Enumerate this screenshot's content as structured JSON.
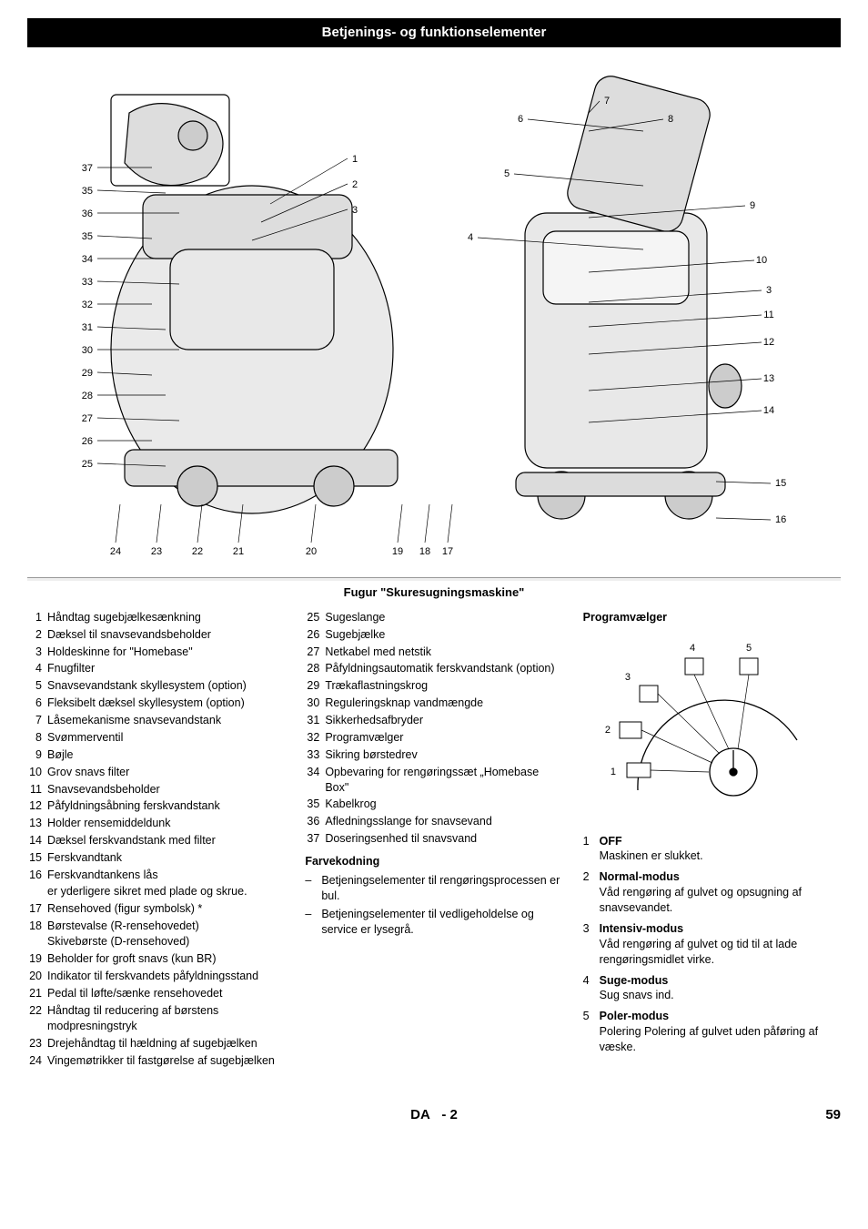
{
  "title_bar": "Betjenings- og funktionselementer",
  "sub_heading": "Fugur \"Skuresugningsmaskine\"",
  "diagram": {
    "left_labels_left": [
      "37",
      "35",
      "36",
      "35",
      "34",
      "33",
      "32",
      "31",
      "30",
      "29",
      "28",
      "27",
      "26",
      "25"
    ],
    "left_labels_top": [
      "1",
      "2",
      "3"
    ],
    "bottom_labels": [
      "24",
      "23",
      "22",
      "21",
      "20",
      "19",
      "18",
      "17"
    ],
    "right_labels_top": [
      "7",
      "6",
      "8",
      "5",
      "9",
      "4",
      "10",
      "3",
      "11",
      "12",
      "13",
      "14"
    ],
    "right_labels_side": [
      "15",
      "16"
    ]
  },
  "col1": [
    {
      "n": "1",
      "t": "Håndtag sugebjælkesænkning"
    },
    {
      "n": "2",
      "t": "Dæksel til snavsevandsbeholder"
    },
    {
      "n": "3",
      "t": "Holdeskinne for \"Homebase\""
    },
    {
      "n": "4",
      "t": "Fnugfilter"
    },
    {
      "n": "5",
      "t": "Snavsevandstank skyllesystem (option)"
    },
    {
      "n": "6",
      "t": "Fleksibelt dæksel skyllesystem (option)"
    },
    {
      "n": "7",
      "t": "Låsemekanisme snavsevandstank"
    },
    {
      "n": "8",
      "t": "Svømmerventil"
    },
    {
      "n": "9",
      "t": "Bøjle"
    },
    {
      "n": "10",
      "t": "Grov snavs filter"
    },
    {
      "n": "11",
      "t": "Snavsevandsbeholder"
    },
    {
      "n": "12",
      "t": "Påfyldningsåbning ferskvandstank"
    },
    {
      "n": "13",
      "t": "Holder rensemiddeldunk"
    },
    {
      "n": "14",
      "t": "Dæksel ferskvandstank med filter"
    },
    {
      "n": "15",
      "t": "Ferskvandtank"
    },
    {
      "n": "16",
      "t": "Ferskvandtankens lås",
      "sub": "er yderligere sikret med plade og skrue."
    },
    {
      "n": "17",
      "t": "Rensehoved (figur symbolsk) *"
    },
    {
      "n": "18",
      "t": "Børstevalse (R-rensehovedet)",
      "sub": "Skivebørste (D-rensehoved)"
    },
    {
      "n": "19",
      "t": "Beholder for groft snavs (kun BR)"
    },
    {
      "n": "20",
      "t": "Indikator til ferskvandets påfyldningsstand"
    },
    {
      "n": "21",
      "t": "Pedal til løfte/sænke rensehovedet"
    },
    {
      "n": "22",
      "t": "Håndtag til reducering af børstens modpresningstryk"
    },
    {
      "n": "23",
      "t": "Drejehåndtag til hældning af sugebjælken"
    },
    {
      "n": "24",
      "t": "Vingemøtrikker til fastgørelse af sugebjælken"
    }
  ],
  "col2": [
    {
      "n": "25",
      "t": "Sugeslange"
    },
    {
      "n": "26",
      "t": "Sugebjælke"
    },
    {
      "n": "27",
      "t": "Netkabel med netstik"
    },
    {
      "n": "28",
      "t": "Påfyldningsautomatik ferskvandstank (option)"
    },
    {
      "n": "29",
      "t": "Trækaflastningskrog"
    },
    {
      "n": "30",
      "t": "Reguleringsknap vandmængde"
    },
    {
      "n": "31",
      "t": "Sikkerhedsafbryder"
    },
    {
      "n": "32",
      "t": "Programvælger"
    },
    {
      "n": "33",
      "t": "Sikring børstedrev"
    },
    {
      "n": "34",
      "t": "Opbevaring for rengøringssæt „Homebase Box\""
    },
    {
      "n": "35",
      "t": "Kabelkrog"
    },
    {
      "n": "36",
      "t": "Afledningsslange for snavsevand"
    },
    {
      "n": "37",
      "t": "Doseringsenhed til snavsvand"
    }
  ],
  "farvekodning_title": "Farvekodning",
  "farvekodning": [
    "Betjeningselementer til rengøringsprocessen er bul.",
    "Betjeningselementer til vedligeholdelse og service er lysegrå."
  ],
  "programvaelger_title": "Programvælger",
  "dial_labels": [
    "1",
    "2",
    "3",
    "4",
    "5"
  ],
  "dial_off": "OFF",
  "modes": [
    {
      "n": "1",
      "name": "OFF",
      "desc": "Maskinen er slukket."
    },
    {
      "n": "2",
      "name": "Normal-modus",
      "desc": "Våd rengøring af gulvet og opsugning af snavsevandet."
    },
    {
      "n": "3",
      "name": "Intensiv-modus",
      "desc": "Våd rengøring af gulvet og tid til at lade rengøringsmidlet virke."
    },
    {
      "n": "4",
      "name": "Suge-modus",
      "desc": "Sug snavs ind."
    },
    {
      "n": "5",
      "name": "Poler-modus",
      "desc": "Polering Polering af gulvet uden påføring af væske."
    }
  ],
  "footer": {
    "lang": "DA",
    "sep": "-",
    "sub": "2",
    "page": "59"
  }
}
